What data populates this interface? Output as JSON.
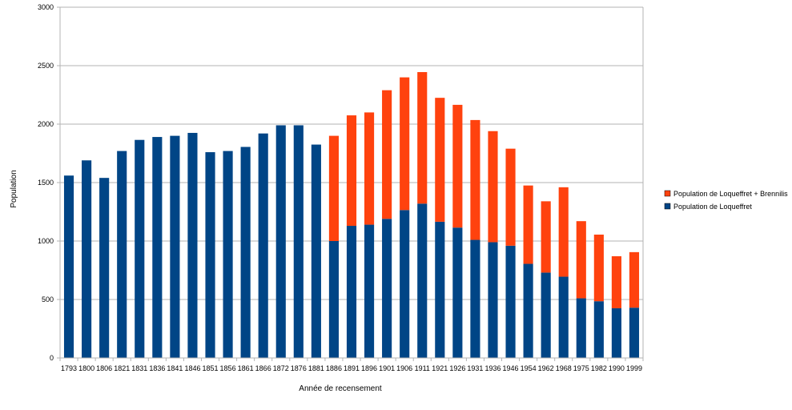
{
  "chart_data": {
    "type": "bar",
    "stacked": true,
    "xlabel": "Année de recensement",
    "ylabel": "Population",
    "ylim": [
      0,
      3000
    ],
    "yticks": [
      0,
      500,
      1000,
      1500,
      2000,
      2500,
      3000
    ],
    "grid": true,
    "legend_position": "right",
    "categories": [
      "1793",
      "1800",
      "1806",
      "1821",
      "1831",
      "1836",
      "1841",
      "1846",
      "1851",
      "1856",
      "1861",
      "1866",
      "1872",
      "1876",
      "1881",
      "1886",
      "1891",
      "1896",
      "1901",
      "1906",
      "1911",
      "1921",
      "1926",
      "1931",
      "1936",
      "1946",
      "1954",
      "1962",
      "1968",
      "1975",
      "1982",
      "1990",
      "1999"
    ],
    "series": [
      {
        "name": "Population de Loqueffret",
        "color": "#004586",
        "values": [
          1560,
          1690,
          1540,
          1770,
          1865,
          1890,
          1900,
          1925,
          1760,
          1770,
          1805,
          1920,
          1990,
          1990,
          1825,
          1000,
          1130,
          1140,
          1190,
          1265,
          1320,
          1165,
          1115,
          1010,
          990,
          960,
          805,
          730,
          695,
          510,
          485,
          425,
          430
        ]
      },
      {
        "name": "Population de Loqueffret + Brennilis",
        "color": "#ff420e",
        "totals": [
          null,
          null,
          null,
          null,
          null,
          null,
          null,
          null,
          null,
          null,
          null,
          null,
          null,
          null,
          null,
          1900,
          2075,
          2100,
          2290,
          2400,
          2445,
          2225,
          2165,
          2035,
          1940,
          1790,
          1475,
          1340,
          1460,
          1170,
          1055,
          870,
          905
        ]
      }
    ]
  }
}
